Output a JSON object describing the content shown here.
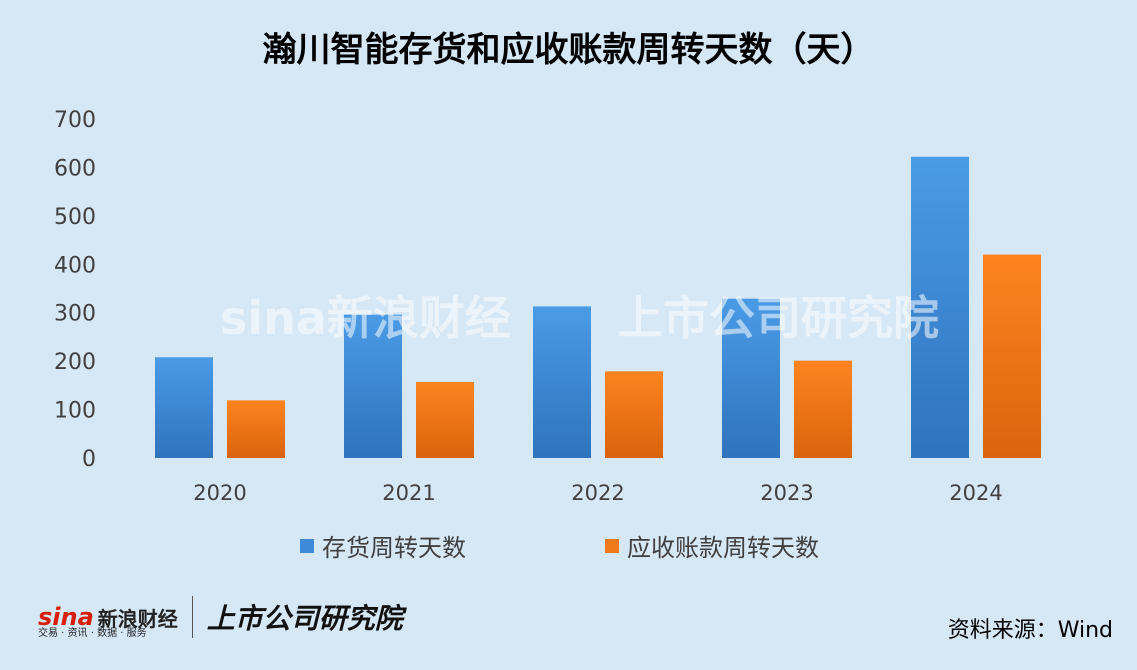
{
  "chart_data": {
    "type": "bar",
    "title": "瀚川智能存货和应收账款周转天数（天）",
    "categories": [
      "2020",
      "2021",
      "2022",
      "2023",
      "2024"
    ],
    "series": [
      {
        "name": "存货周转天数",
        "values": [
          208,
          296,
          313,
          329,
          622
        ],
        "color": "#3e8ad8"
      },
      {
        "name": "应收账款周转天数",
        "values": [
          119,
          157,
          179,
          201,
          420
        ],
        "color": "#f07a1a"
      }
    ],
    "yticks": [
      0,
      100,
      200,
      300,
      400,
      500,
      600,
      700
    ],
    "ylim": [
      0,
      700
    ],
    "grid": false,
    "legend_position": "bottom"
  },
  "watermark": {
    "brand": "sina新浪财经",
    "research": "上市公司研究院"
  },
  "footer": {
    "logo_sina": "sina",
    "logo_sina_cn": "新浪财经",
    "logo_sub": "交易 · 资讯 · 数据 · 服务",
    "logo_research": "上市公司研究院",
    "source": "资料来源：Wind"
  }
}
